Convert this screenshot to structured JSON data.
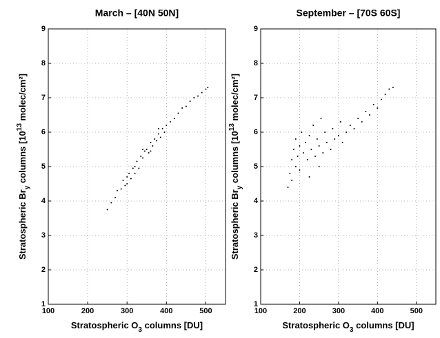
{
  "chart_data": [
    {
      "type": "scatter",
      "title": "March – [40N 50N]",
      "xlabel": [
        "Stratospheric O",
        "3",
        " columns [DU]"
      ],
      "ylabel": [
        "Stratospheric Br",
        "y",
        " columns [10",
        "13",
        " molec/cm²]"
      ],
      "xlim": [
        100,
        550
      ],
      "ylim": [
        1,
        9
      ],
      "xticks": [
        100,
        200,
        300,
        400,
        500
      ],
      "yticks": [
        1,
        2,
        3,
        4,
        5,
        6,
        7,
        8,
        9
      ],
      "grid": true,
      "color": "#000000",
      "x": [
        250,
        260,
        270,
        275,
        285,
        290,
        295,
        300,
        305,
        310,
        315,
        320,
        325,
        330,
        335,
        340,
        345,
        350,
        355,
        360,
        365,
        370,
        375,
        380,
        385,
        390,
        395,
        400,
        410,
        420,
        430,
        440,
        450,
        460,
        470,
        480,
        490,
        500,
        505,
        320,
        340,
        360,
        380,
        300
      ],
      "values": [
        3.75,
        3.95,
        4.1,
        4.3,
        4.35,
        4.6,
        4.45,
        4.7,
        4.8,
        4.65,
        4.95,
        5.0,
        5.15,
        4.95,
        5.3,
        5.25,
        5.45,
        5.5,
        5.4,
        5.7,
        5.6,
        5.8,
        5.75,
        5.95,
        5.85,
        6.1,
        6.0,
        6.2,
        6.3,
        6.4,
        6.55,
        6.7,
        6.75,
        6.9,
        7.0,
        7.05,
        7.15,
        7.25,
        7.3,
        4.8,
        5.5,
        5.45,
        6.1,
        4.5
      ]
    },
    {
      "type": "scatter",
      "title": "September – [70S 60S]",
      "xlabel": [
        "Stratospheric O",
        "3",
        " columns [DU]"
      ],
      "ylabel": [
        "Stratospheric Br",
        "y",
        " columns [10",
        "13",
        " molec/cm²]"
      ],
      "xlim": [
        100,
        550
      ],
      "ylim": [
        1,
        9
      ],
      "xticks": [
        100,
        200,
        300,
        400,
        500
      ],
      "yticks": [
        1,
        2,
        3,
        4,
        5,
        6,
        7,
        8,
        9
      ],
      "grid": true,
      "color": "#000000",
      "x": [
        170,
        175,
        180,
        180,
        185,
        190,
        190,
        195,
        200,
        200,
        205,
        210,
        215,
        220,
        225,
        230,
        235,
        240,
        245,
        250,
        255,
        260,
        265,
        270,
        280,
        285,
        290,
        300,
        305,
        310,
        320,
        330,
        340,
        350,
        360,
        370,
        380,
        390,
        400,
        410,
        420,
        430,
        440,
        225,
        250
      ],
      "values": [
        4.4,
        4.8,
        5.2,
        4.6,
        5.5,
        5.0,
        5.8,
        5.3,
        5.6,
        4.9,
        6.0,
        5.4,
        5.7,
        5.2,
        5.9,
        5.5,
        6.2,
        5.3,
        5.8,
        5.6,
        6.4,
        5.4,
        6.0,
        5.7,
        5.5,
        6.1,
        5.8,
        5.9,
        6.3,
        5.7,
        6.0,
        6.2,
        6.1,
        6.4,
        6.3,
        6.6,
        6.5,
        6.8,
        6.7,
        6.95,
        7.1,
        7.25,
        7.3,
        4.7,
        5.0
      ]
    }
  ]
}
